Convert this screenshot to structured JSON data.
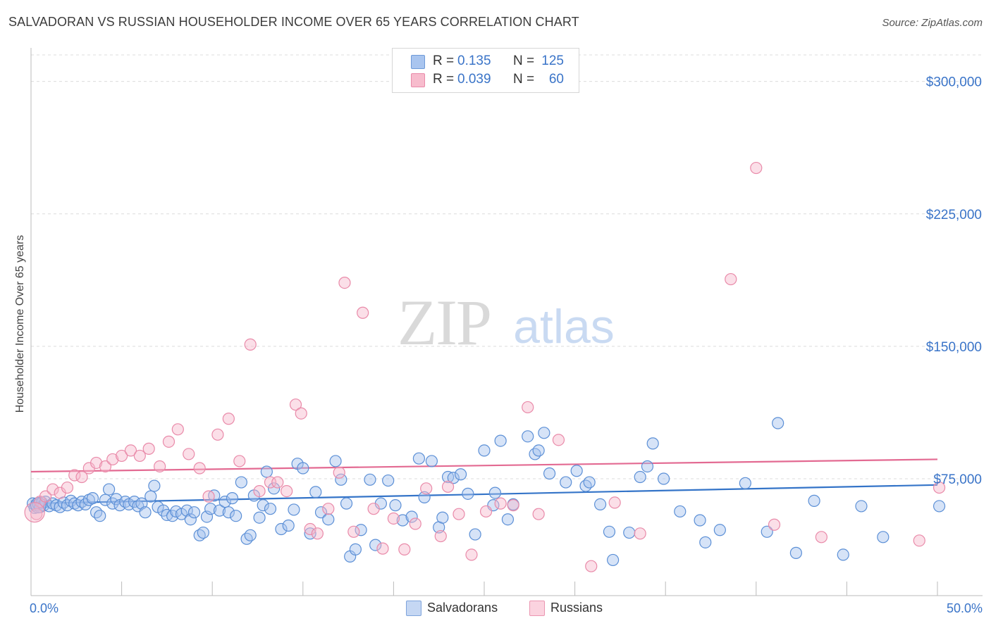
{
  "title": "SALVADORAN VS RUSSIAN HOUSEHOLDER INCOME OVER 65 YEARS CORRELATION CHART",
  "source": "Source: ZipAtlas.com",
  "watermark": {
    "zip": "ZIP",
    "atlas": "atlas"
  },
  "legend": {
    "r_label": "R =",
    "n_label": "N =",
    "rows": [
      {
        "r_value": "0.135",
        "n_value": "125",
        "color": "#a9c5ef",
        "edge": "#6e9ad8"
      },
      {
        "r_value": "0.039",
        "n_value": "60",
        "color": "#f7bccd",
        "edge": "#e98aa9"
      }
    ]
  },
  "bottom_legend": [
    {
      "label": "Salvadorans",
      "color": "#c5d7f3",
      "edge": "#7ea4dc"
    },
    {
      "label": "Russians",
      "color": "#fbd3df",
      "edge": "#eb96b1"
    }
  ],
  "chart_data": {
    "type": "scatter",
    "title": "SALVADORAN VS RUSSIAN HOUSEHOLDER INCOME OVER 65 YEARS CORRELATION CHART",
    "xlabel": "",
    "ylabel": "Householder Income Over 65 years",
    "xlim": [
      0,
      50
    ],
    "ylim": [
      20000,
      315000
    ],
    "x_tick_labels": [
      "0.0%",
      "50.0%"
    ],
    "y_ticks": [
      75000,
      150000,
      225000,
      300000
    ],
    "y_tick_labels": [
      "$75,000",
      "$150,000",
      "$225,000",
      "$300,000"
    ],
    "grid": "horizontal dashed",
    "legend_position": "top-center",
    "series": [
      {
        "name": "Salvadorans",
        "color": "#5b8fd6",
        "fill": "rgba(163,193,238,0.45)",
        "trend": {
          "color": "#3474c8",
          "x": [
            0,
            50
          ],
          "y": [
            61000,
            71500
          ]
        },
        "points": [
          [
            0.1,
            61000
          ],
          [
            0.2,
            58500
          ],
          [
            0.3,
            60000
          ],
          [
            0.4,
            60500
          ],
          [
            0.5,
            59000
          ],
          [
            0.6,
            61500
          ],
          [
            0.7,
            60000
          ],
          [
            0.8,
            62000
          ],
          [
            1.0,
            59500
          ],
          [
            1.2,
            61000
          ],
          [
            1.4,
            60000
          ],
          [
            1.6,
            59000
          ],
          [
            1.8,
            61500
          ],
          [
            2.0,
            60000
          ],
          [
            2.2,
            62500
          ],
          [
            2.4,
            61000
          ],
          [
            2.6,
            60000
          ],
          [
            2.8,
            62000
          ],
          [
            3.0,
            60500
          ],
          [
            3.2,
            63000
          ],
          [
            3.4,
            64000
          ],
          [
            3.6,
            56000
          ],
          [
            3.8,
            54000
          ],
          [
            4.1,
            63000
          ],
          [
            4.3,
            69000
          ],
          [
            4.5,
            61000
          ],
          [
            4.7,
            63500
          ],
          [
            4.9,
            60000
          ],
          [
            5.2,
            62000
          ],
          [
            5.4,
            60500
          ],
          [
            5.7,
            62000
          ],
          [
            5.9,
            59500
          ],
          [
            6.1,
            61000
          ],
          [
            6.3,
            56000
          ],
          [
            6.6,
            65000
          ],
          [
            6.8,
            71000
          ],
          [
            7.0,
            59000
          ],
          [
            7.3,
            57000
          ],
          [
            7.5,
            54500
          ],
          [
            7.8,
            54000
          ],
          [
            8.0,
            56500
          ],
          [
            8.3,
            55000
          ],
          [
            8.6,
            57000
          ],
          [
            8.8,
            52000
          ],
          [
            9.0,
            56000
          ],
          [
            9.3,
            43000
          ],
          [
            9.5,
            44500
          ],
          [
            9.7,
            53500
          ],
          [
            9.9,
            58000
          ],
          [
            10.1,
            65500
          ],
          [
            10.4,
            57000
          ],
          [
            10.7,
            62000
          ],
          [
            10.9,
            56000
          ],
          [
            11.1,
            64000
          ],
          [
            11.3,
            54000
          ],
          [
            11.6,
            73000
          ],
          [
            11.9,
            41000
          ],
          [
            12.1,
            43000
          ],
          [
            12.3,
            65500
          ],
          [
            12.6,
            53000
          ],
          [
            12.8,
            60000
          ],
          [
            13.0,
            79000
          ],
          [
            13.2,
            58000
          ],
          [
            13.4,
            69500
          ],
          [
            13.8,
            46500
          ],
          [
            14.2,
            48500
          ],
          [
            14.5,
            57500
          ],
          [
            14.7,
            83500
          ],
          [
            15.0,
            81000
          ],
          [
            15.4,
            44000
          ],
          [
            15.7,
            67500
          ],
          [
            16.0,
            56000
          ],
          [
            16.4,
            52000
          ],
          [
            16.8,
            85000
          ],
          [
            17.1,
            74500
          ],
          [
            17.4,
            61000
          ],
          [
            17.6,
            31000
          ],
          [
            17.9,
            35000
          ],
          [
            18.2,
            46000
          ],
          [
            18.7,
            74500
          ],
          [
            19.0,
            37500
          ],
          [
            19.3,
            61000
          ],
          [
            19.7,
            74000
          ],
          [
            20.1,
            60000
          ],
          [
            20.5,
            51500
          ],
          [
            21.0,
            53500
          ],
          [
            21.4,
            86500
          ],
          [
            21.7,
            64500
          ],
          [
            22.1,
            85000
          ],
          [
            22.5,
            47500
          ],
          [
            22.7,
            53000
          ],
          [
            23.0,
            76000
          ],
          [
            23.3,
            75500
          ],
          [
            23.7,
            77500
          ],
          [
            24.1,
            66500
          ],
          [
            24.5,
            43500
          ],
          [
            25.0,
            91000
          ],
          [
            25.5,
            60000
          ],
          [
            25.6,
            67000
          ],
          [
            25.9,
            96500
          ],
          [
            26.3,
            52000
          ],
          [
            26.6,
            60500
          ],
          [
            27.4,
            99000
          ],
          [
            27.8,
            89000
          ],
          [
            28.0,
            91000
          ],
          [
            28.3,
            101000
          ],
          [
            28.6,
            78000
          ],
          [
            29.5,
            73000
          ],
          [
            30.1,
            79500
          ],
          [
            30.6,
            71000
          ],
          [
            30.8,
            73000
          ],
          [
            31.4,
            60500
          ],
          [
            31.9,
            45000
          ],
          [
            32.1,
            29000
          ],
          [
            33.0,
            44500
          ],
          [
            33.6,
            76000
          ],
          [
            34.0,
            82000
          ],
          [
            34.3,
            95000
          ],
          [
            34.9,
            75000
          ],
          [
            35.8,
            56500
          ],
          [
            36.9,
            51500
          ],
          [
            37.2,
            39000
          ],
          [
            38.0,
            46000
          ],
          [
            39.4,
            72500
          ],
          [
            40.6,
            45000
          ],
          [
            41.2,
            106500
          ],
          [
            42.2,
            33000
          ],
          [
            43.2,
            62500
          ],
          [
            44.8,
            32000
          ],
          [
            45.8,
            59500
          ],
          [
            47.0,
            42000
          ],
          [
            50.1,
            59500
          ]
        ]
      },
      {
        "name": "Russians",
        "color": "#e98aa9",
        "fill": "rgba(246,183,203,0.45)",
        "trend": {
          "color": "#e36a92",
          "x": [
            0,
            50
          ],
          "y": [
            79000,
            86000
          ]
        },
        "points": [
          [
            0.3,
            55000
          ],
          [
            0.5,
            62000
          ],
          [
            0.8,
            65000
          ],
          [
            1.2,
            69000
          ],
          [
            1.6,
            67000
          ],
          [
            2.0,
            70000
          ],
          [
            2.4,
            77000
          ],
          [
            2.8,
            76000
          ],
          [
            3.2,
            81000
          ],
          [
            3.6,
            84000
          ],
          [
            4.1,
            82000
          ],
          [
            4.5,
            86000
          ],
          [
            5.0,
            88000
          ],
          [
            5.5,
            91000
          ],
          [
            6.0,
            88000
          ],
          [
            6.5,
            92000
          ],
          [
            7.1,
            82000
          ],
          [
            7.6,
            96000
          ],
          [
            8.1,
            103000
          ],
          [
            8.7,
            89000
          ],
          [
            9.3,
            81000
          ],
          [
            9.8,
            65000
          ],
          [
            10.3,
            100000
          ],
          [
            10.9,
            109000
          ],
          [
            11.5,
            85000
          ],
          [
            12.1,
            151000
          ],
          [
            12.6,
            68000
          ],
          [
            13.2,
            73000
          ],
          [
            13.6,
            73000
          ],
          [
            14.1,
            68000
          ],
          [
            14.6,
            117000
          ],
          [
            14.9,
            112000
          ],
          [
            15.4,
            46500
          ],
          [
            15.8,
            44000
          ],
          [
            16.4,
            58000
          ],
          [
            17.0,
            78500
          ],
          [
            17.3,
            186000
          ],
          [
            17.8,
            45000
          ],
          [
            18.3,
            169000
          ],
          [
            18.9,
            58000
          ],
          [
            19.4,
            35500
          ],
          [
            20.0,
            52500
          ],
          [
            20.6,
            35000
          ],
          [
            21.2,
            49500
          ],
          [
            21.8,
            69500
          ],
          [
            22.6,
            42500
          ],
          [
            23.0,
            70500
          ],
          [
            23.6,
            55000
          ],
          [
            24.3,
            32000
          ],
          [
            25.1,
            56500
          ],
          [
            25.9,
            61000
          ],
          [
            26.6,
            60000
          ],
          [
            27.4,
            115500
          ],
          [
            28.0,
            55000
          ],
          [
            29.1,
            97000
          ],
          [
            30.9,
            25500
          ],
          [
            32.2,
            61500
          ],
          [
            33.6,
            44000
          ],
          [
            38.6,
            188000
          ],
          [
            40.0,
            251000
          ],
          [
            41.0,
            49000
          ],
          [
            43.6,
            42000
          ],
          [
            49.0,
            40000
          ],
          [
            50.1,
            70000
          ]
        ]
      }
    ]
  }
}
